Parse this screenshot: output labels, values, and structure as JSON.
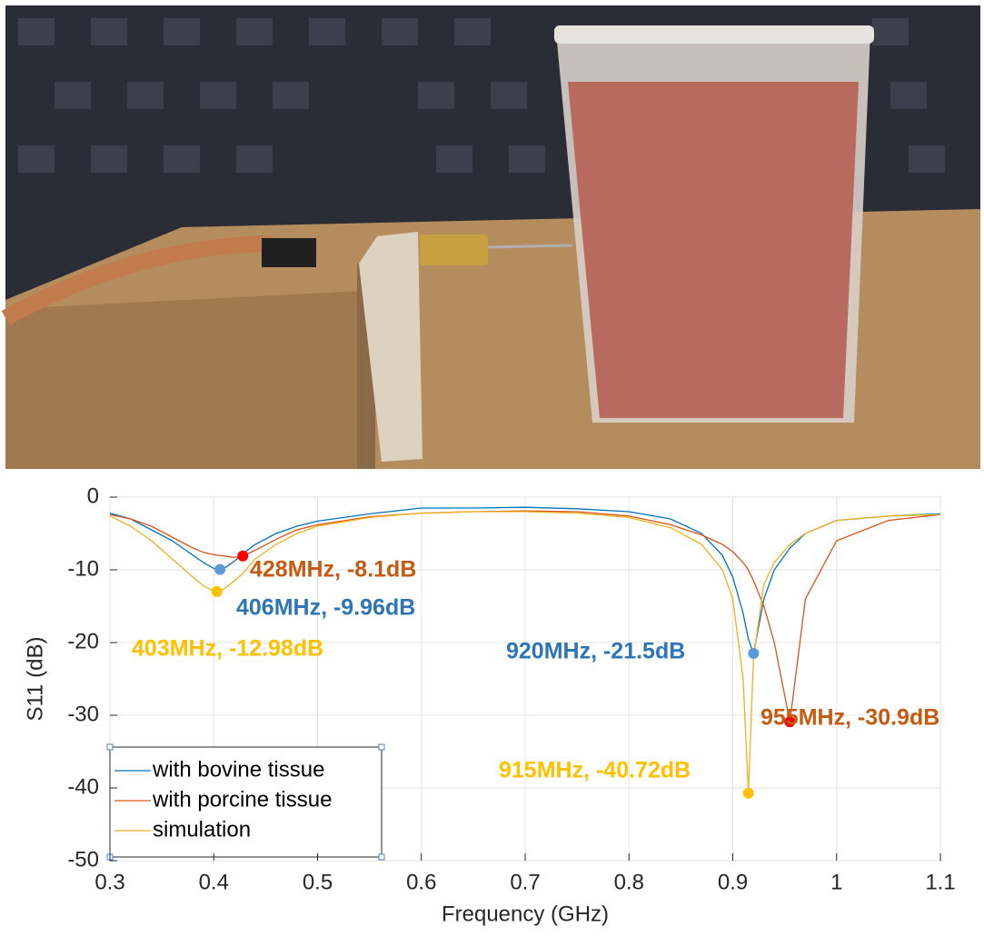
{
  "chart_data": {
    "type": "line",
    "xlabel": "Frequency (GHz)",
    "ylabel": "S11 (dB)",
    "xlim": [
      0.3,
      1.1
    ],
    "ylim": [
      -50,
      0
    ],
    "xticks": [
      0.3,
      0.4,
      0.5,
      0.6,
      0.7,
      0.8,
      0.9,
      1,
      1.1
    ],
    "yticks": [
      -50,
      -40,
      -30,
      -20,
      -10,
      0
    ],
    "grid": true,
    "legend": "lower left",
    "x": [
      0.3,
      0.32,
      0.34,
      0.36,
      0.38,
      0.39,
      0.4,
      0.403,
      0.406,
      0.41,
      0.42,
      0.428,
      0.44,
      0.46,
      0.48,
      0.5,
      0.55,
      0.6,
      0.65,
      0.7,
      0.75,
      0.8,
      0.84,
      0.87,
      0.89,
      0.9,
      0.91,
      0.915,
      0.92,
      0.93,
      0.94,
      0.955,
      0.97,
      1.0,
      1.05,
      1.1
    ],
    "series": [
      {
        "name": "with bovine tissue",
        "color": "#0072bd",
        "values": [
          -2.2,
          -3,
          -4.5,
          -6,
          -8,
          -9,
          -9.8,
          -9.9,
          -9.96,
          -9.8,
          -8.8,
          -7.8,
          -6.5,
          -5,
          -4,
          -3.3,
          -2.3,
          -1.5,
          -1.5,
          -1.4,
          -1.6,
          -2,
          -3,
          -5,
          -8,
          -11,
          -16,
          -19.5,
          -21.5,
          -14,
          -10,
          -7,
          -5,
          -3.2,
          -2.6,
          -2.3
        ]
      },
      {
        "name": "with porcine tissue",
        "color": "#d95319",
        "values": [
          -2.4,
          -3,
          -4,
          -5.5,
          -7,
          -7.6,
          -7.9,
          -8,
          -8,
          -8.1,
          -8.3,
          -8.1,
          -7.3,
          -5.8,
          -4.5,
          -3.8,
          -2.7,
          -2.2,
          -2,
          -1.9,
          -2,
          -2.6,
          -3.8,
          -5.2,
          -6.5,
          -7.5,
          -9,
          -10,
          -11.5,
          -15,
          -20,
          -30.9,
          -14,
          -6,
          -3.2,
          -2.4
        ]
      },
      {
        "name": "simulation",
        "color": "#edb120",
        "values": [
          -2.6,
          -4,
          -6,
          -8.5,
          -11,
          -12.2,
          -12.9,
          -12.98,
          -12.9,
          -12.6,
          -11.5,
          -10.5,
          -8.5,
          -6.5,
          -5,
          -4,
          -2.8,
          -2.2,
          -2,
          -2,
          -2.2,
          -2.8,
          -4.2,
          -6.5,
          -10,
          -14,
          -25,
          -40.72,
          -22,
          -12,
          -9,
          -6.5,
          -5,
          -3.2,
          -2.6,
          -2.4
        ]
      }
    ],
    "annotations": [
      {
        "text": "428MHz, -8.1dB",
        "x": 0.428,
        "y": -8.1,
        "color": "#c55a11",
        "marker_color": "#ff0000"
      },
      {
        "text": "406MHz, -9.96dB",
        "x": 0.406,
        "y": -9.96,
        "color": "#2e75b6",
        "marker_color": "#5b9bd5"
      },
      {
        "text": "403MHz, -12.98dB",
        "x": 0.403,
        "y": -12.98,
        "color": "#ffc000",
        "marker_color": "#ffc000"
      },
      {
        "text": "920MHz, -21.5dB",
        "x": 0.92,
        "y": -21.5,
        "color": "#2e75b6",
        "marker_color": "#5b9bd5"
      },
      {
        "text": "955MHz, -30.9dB",
        "x": 0.955,
        "y": -30.9,
        "color": "#c55a11",
        "marker_color": "#ff0000"
      },
      {
        "text": "915MHz, -40.72dB",
        "x": 0.915,
        "y": -40.72,
        "color": "#ffc000",
        "marker_color": "#ffc000"
      }
    ]
  }
}
